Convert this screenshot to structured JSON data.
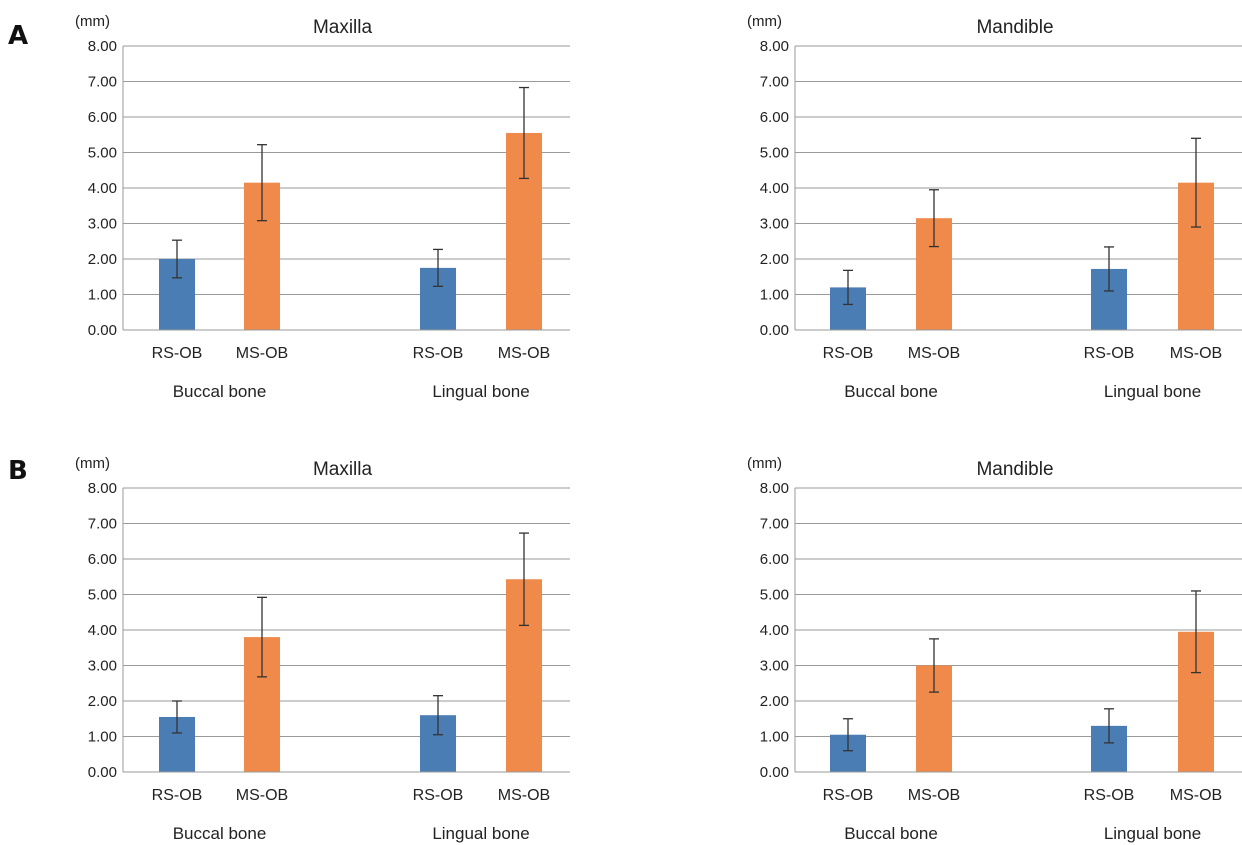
{
  "panels": [
    {
      "label": "A"
    },
    {
      "label": "B"
    }
  ],
  "chart_data": [
    {
      "type": "bar",
      "panel": "A",
      "title": "Maxilla",
      "unit": "(mm)",
      "ylim": [
        0,
        8
      ],
      "yticks": [
        "0.00",
        "1.00",
        "2.00",
        "3.00",
        "4.00",
        "5.00",
        "6.00",
        "7.00",
        "8.00"
      ],
      "groups": [
        "Buccal bone",
        "Lingual bone"
      ],
      "categories": [
        "RS-OB",
        "MS-OB",
        "RS-OB",
        "MS-OB"
      ],
      "values": [
        2.0,
        4.15,
        1.75,
        5.55
      ],
      "errors": [
        0.53,
        1.07,
        0.52,
        1.28
      ],
      "colors": [
        "#4b7db5",
        "#ef8a4b",
        "#4b7db5",
        "#ef8a4b"
      ]
    },
    {
      "type": "bar",
      "panel": "A",
      "title": "Mandible",
      "unit": "(mm)",
      "ylim": [
        0,
        8
      ],
      "yticks": [
        "0.00",
        "1.00",
        "2.00",
        "3.00",
        "4.00",
        "5.00",
        "6.00",
        "7.00",
        "8.00"
      ],
      "groups": [
        "Buccal bone",
        "Lingual bone"
      ],
      "categories": [
        "RS-OB",
        "MS-OB",
        "RS-OB",
        "MS-OB"
      ],
      "values": [
        1.2,
        3.15,
        1.72,
        4.15
      ],
      "errors": [
        0.48,
        0.8,
        0.62,
        1.25
      ],
      "colors": [
        "#4b7db5",
        "#ef8a4b",
        "#4b7db5",
        "#ef8a4b"
      ]
    },
    {
      "type": "bar",
      "panel": "B",
      "title": "Maxilla",
      "unit": "(mm)",
      "ylim": [
        0,
        8
      ],
      "yticks": [
        "0.00",
        "1.00",
        "2.00",
        "3.00",
        "4.00",
        "5.00",
        "6.00",
        "7.00",
        "8.00"
      ],
      "groups": [
        "Buccal bone",
        "Lingual bone"
      ],
      "categories": [
        "RS-OB",
        "MS-OB",
        "RS-OB",
        "MS-OB"
      ],
      "values": [
        1.55,
        3.8,
        1.6,
        5.43
      ],
      "errors": [
        0.45,
        1.12,
        0.55,
        1.3
      ],
      "colors": [
        "#4b7db5",
        "#ef8a4b",
        "#4b7db5",
        "#ef8a4b"
      ]
    },
    {
      "type": "bar",
      "panel": "B",
      "title": "Mandible",
      "unit": "(mm)",
      "ylim": [
        0,
        8
      ],
      "yticks": [
        "0.00",
        "1.00",
        "2.00",
        "3.00",
        "4.00",
        "5.00",
        "6.00",
        "7.00",
        "8.00"
      ],
      "groups": [
        "Buccal bone",
        "Lingual bone"
      ],
      "categories": [
        "RS-OB",
        "MS-OB",
        "RS-OB",
        "MS-OB"
      ],
      "values": [
        1.05,
        3.0,
        1.3,
        3.95
      ],
      "errors": [
        0.45,
        0.75,
        0.48,
        1.15
      ],
      "colors": [
        "#4b7db5",
        "#ef8a4b",
        "#4b7db5",
        "#ef8a4b"
      ]
    }
  ]
}
